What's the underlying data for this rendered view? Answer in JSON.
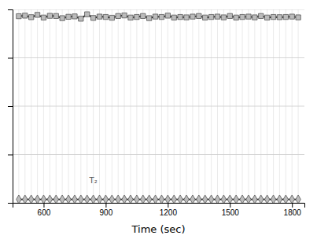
{
  "chart_data": {
    "type": "line",
    "xlabel": "Time (sec)",
    "x": [
      480,
      510,
      540,
      570,
      600,
      630,
      660,
      690,
      720,
      750,
      780,
      810,
      840,
      870,
      900,
      930,
      960,
      990,
      1020,
      1050,
      1080,
      1110,
      1140,
      1170,
      1200,
      1230,
      1260,
      1290,
      1320,
      1350,
      1380,
      1410,
      1440,
      1470,
      1500,
      1530,
      1560,
      1590,
      1620,
      1650,
      1680,
      1710,
      1740,
      1770,
      1800,
      1830
    ],
    "series": [
      {
        "color": "#111111",
        "marker": "square",
        "values": [
          965,
          968,
          960,
          972,
          958,
          967,
          966,
          955,
          962,
          964,
          952,
          975,
          956,
          963,
          961,
          957,
          966,
          969,
          958,
          961,
          966,
          955,
          963,
          961,
          968,
          958,
          961,
          959,
          963,
          966,
          958,
          961,
          963,
          959,
          966,
          958,
          961,
          963,
          959,
          966,
          958,
          961,
          960,
          961,
          963,
          959
        ]
      },
      {
        "color": "#111111",
        "marker": "diamond",
        "values": [
          18,
          18,
          18,
          18,
          18,
          18,
          18,
          18,
          18,
          18,
          18,
          18,
          18,
          18,
          18,
          18,
          18,
          18,
          18,
          18,
          18,
          18,
          18,
          18,
          18,
          18,
          18,
          18,
          18,
          18,
          18,
          18,
          18,
          18,
          18,
          18,
          18,
          18,
          18,
          18,
          18,
          18,
          18,
          18,
          18,
          18
        ]
      }
    ],
    "xlim": [
      450,
      1860
    ],
    "ylim": [
      0,
      1000
    ],
    "xticks": [
      600,
      900,
      1200,
      1500,
      1800
    ],
    "yticks": [
      0,
      250,
      500,
      750,
      1000
    ],
    "tick_labels": "x",
    "grid": true,
    "annotations": [
      {
        "text": "T₂",
        "x": 840,
        "y": 115
      }
    ]
  }
}
